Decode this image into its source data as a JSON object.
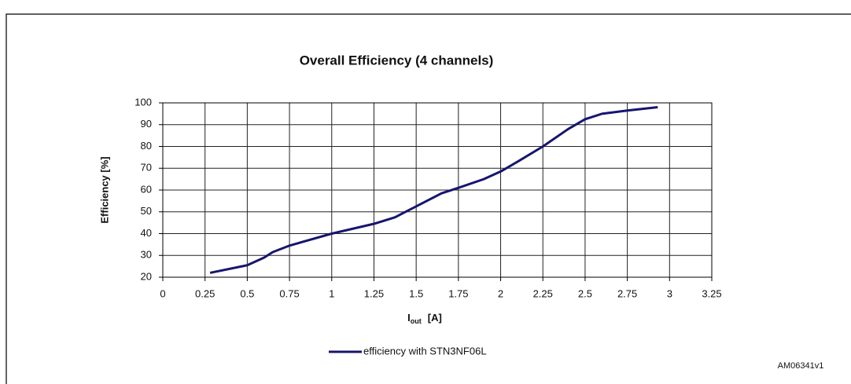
{
  "chart_data": {
    "type": "line",
    "title": "Overall Efficiency (4 channels)",
    "y_label": "Efficiency  [%]",
    "x_label": {
      "main": "I",
      "sub": "out",
      "unit": "[A]"
    },
    "x": [
      0.28,
      0.5,
      0.6,
      0.65,
      0.75,
      1.0,
      1.25,
      1.375,
      1.5,
      1.65,
      1.75,
      1.9,
      2.0,
      2.1,
      2.25,
      2.4,
      2.5,
      2.6,
      2.75,
      2.93
    ],
    "series": [
      {
        "name": "efficiency with STN3NF06L",
        "color": "#16166e",
        "values": [
          22,
          25.5,
          29,
          31.5,
          34.5,
          40,
          44.5,
          47.5,
          52.5,
          58.5,
          61,
          65,
          68.5,
          73,
          80,
          88,
          92.5,
          95,
          96.5,
          98
        ]
      }
    ],
    "xlim": [
      0,
      3.25
    ],
    "xticks": [
      0,
      0.25,
      0.5,
      0.75,
      1,
      1.25,
      1.5,
      1.75,
      2,
      2.25,
      2.5,
      2.75,
      3,
      3.25
    ],
    "ylim": [
      20,
      100
    ],
    "yticks": [
      20,
      30,
      40,
      50,
      60,
      70,
      80,
      90,
      100
    ],
    "grid": true,
    "legend": "bottom",
    "footnote": "AM06341v1"
  }
}
